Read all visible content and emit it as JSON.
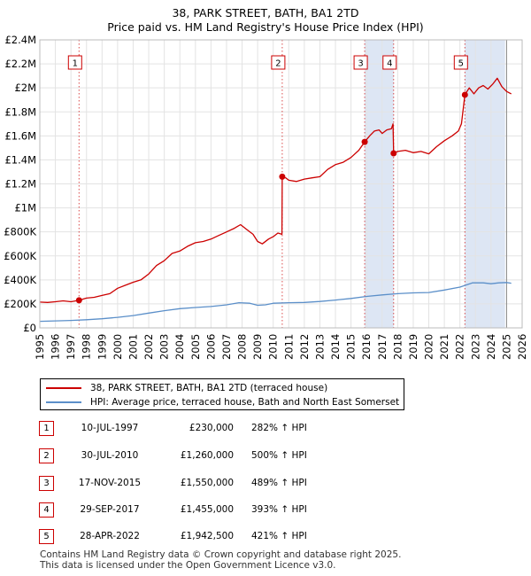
{
  "title_line1": "38, PARK STREET, BATH, BA1 2TD",
  "title_line2": "Price paid vs. HM Land Registry's House Price Index (HPI)",
  "colors": {
    "property": "#cc0000",
    "hpi": "#5b8fc9",
    "shade": "#dde6f4",
    "marker_border": "#cc0000"
  },
  "legend": {
    "property_label": "38, PARK STREET, BATH, BA1 2TD (terraced house)",
    "hpi_label": "HPI: Average price, terraced house, Bath and North East Somerset"
  },
  "transactions": [
    {
      "num": "1",
      "date": "10-JUL-1997",
      "price": "£230,000",
      "hpi": "282% ↑ HPI"
    },
    {
      "num": "2",
      "date": "30-JUL-2010",
      "price": "£1,260,000",
      "hpi": "500% ↑ HPI"
    },
    {
      "num": "3",
      "date": "17-NOV-2015",
      "price": "£1,550,000",
      "hpi": "489% ↑ HPI"
    },
    {
      "num": "4",
      "date": "29-SEP-2017",
      "price": "£1,455,000",
      "hpi": "393% ↑ HPI"
    },
    {
      "num": "5",
      "date": "28-APR-2022",
      "price": "£1,942,500",
      "hpi": "421% ↑ HPI"
    }
  ],
  "footer_line1": "Contains HM Land Registry data © Crown copyright and database right 2025.",
  "footer_line2": "This data is licensed under the Open Government Licence v3.0.",
  "chart_data": {
    "type": "line",
    "title": "38, PARK STREET, BATH, BA1 2TD",
    "subtitle": "Price paid vs. HM Land Registry's House Price Index (HPI)",
    "xlabel": "",
    "ylabel": "",
    "xlim": [
      1995,
      2026
    ],
    "ylim": [
      0,
      2400000
    ],
    "grid": true,
    "x_ticks": [
      1995,
      1996,
      1997,
      1998,
      1999,
      2000,
      2001,
      2002,
      2003,
      2004,
      2005,
      2006,
      2007,
      2008,
      2009,
      2010,
      2011,
      2012,
      2013,
      2014,
      2015,
      2016,
      2017,
      2018,
      2019,
      2020,
      2021,
      2022,
      2023,
      2024,
      2025,
      2026
    ],
    "y_ticks": [
      0,
      200000,
      400000,
      600000,
      800000,
      1000000,
      1200000,
      1400000,
      1600000,
      1800000,
      2000000,
      2200000,
      2400000
    ],
    "y_tick_labels": [
      "£0",
      "£200K",
      "£400K",
      "£600K",
      "£800K",
      "£1M",
      "£1.2M",
      "£1.4M",
      "£1.6M",
      "£1.8M",
      "£2M",
      "£2.2M",
      "£2.4M"
    ],
    "shaded_ranges": [
      [
        2015.88,
        2017.74
      ],
      [
        2022.32,
        2024.9
      ]
    ],
    "projection_line_x": 2025.0,
    "sales": [
      {
        "label": "1",
        "x": 1997.52,
        "y": 230000
      },
      {
        "label": "2",
        "x": 2010.58,
        "y": 1260000
      },
      {
        "label": "3",
        "x": 2015.88,
        "y": 1550000
      },
      {
        "label": "4",
        "x": 2017.74,
        "y": 1455000
      },
      {
        "label": "5",
        "x": 2022.32,
        "y": 1942500
      }
    ],
    "series": [
      {
        "name": "38, PARK STREET, BATH, BA1 2TD (terraced house)",
        "x": [
          1995.0,
          1995.5,
          1996.0,
          1996.5,
          1997.0,
          1997.52,
          1998.0,
          1998.5,
          1999.0,
          1999.5,
          2000.0,
          2000.5,
          2001.0,
          2001.5,
          2002.0,
          2002.5,
          2003.0,
          2003.5,
          2004.0,
          2004.5,
          2005.0,
          2005.5,
          2006.0,
          2006.5,
          2007.0,
          2007.5,
          2007.9,
          2008.3,
          2008.7,
          2009.0,
          2009.3,
          2009.7,
          2010.0,
          2010.3,
          2010.56,
          2010.58,
          2010.8,
          2011.0,
          2011.5,
          2012.0,
          2012.5,
          2013.0,
          2013.5,
          2014.0,
          2014.5,
          2015.0,
          2015.5,
          2015.88,
          2016.2,
          2016.5,
          2016.8,
          2017.0,
          2017.3,
          2017.6,
          2017.7,
          2017.74,
          2018.0,
          2018.5,
          2019.0,
          2019.5,
          2020.0,
          2020.5,
          2021.0,
          2021.5,
          2021.9,
          2022.1,
          2022.32,
          2022.6,
          2022.9,
          2023.2,
          2023.5,
          2023.8,
          2024.1,
          2024.4,
          2024.7,
          2025.0,
          2025.3
        ],
        "values": [
          215000,
          212000,
          218000,
          225000,
          218000,
          230000,
          248000,
          255000,
          270000,
          285000,
          330000,
          355000,
          380000,
          400000,
          450000,
          520000,
          560000,
          620000,
          640000,
          680000,
          710000,
          720000,
          740000,
          770000,
          800000,
          830000,
          860000,
          820000,
          780000,
          720000,
          700000,
          740000,
          760000,
          790000,
          780000,
          1260000,
          1250000,
          1230000,
          1220000,
          1240000,
          1250000,
          1260000,
          1320000,
          1360000,
          1380000,
          1420000,
          1480000,
          1550000,
          1600000,
          1640000,
          1650000,
          1620000,
          1650000,
          1660000,
          1700000,
          1455000,
          1470000,
          1480000,
          1460000,
          1470000,
          1450000,
          1510000,
          1560000,
          1600000,
          1640000,
          1700000,
          1942500,
          2000000,
          1950000,
          2000000,
          2020000,
          1990000,
          2030000,
          2080000,
          2010000,
          1970000,
          1950000
        ]
      },
      {
        "name": "HPI: Average price, terraced house, Bath and North East Somerset",
        "x": [
          1995.0,
          1996.0,
          1997.0,
          1998.0,
          1999.0,
          2000.0,
          2001.0,
          2002.0,
          2003.0,
          2004.0,
          2005.0,
          2006.0,
          2007.0,
          2007.8,
          2008.5,
          2009.0,
          2009.5,
          2010.0,
          2011.0,
          2012.0,
          2013.0,
          2014.0,
          2015.0,
          2016.0,
          2017.0,
          2018.0,
          2019.0,
          2020.0,
          2021.0,
          2022.0,
          2022.8,
          2023.5,
          2024.0,
          2024.5,
          2025.0,
          2025.3
        ],
        "values": [
          55000,
          58000,
          62000,
          68000,
          76000,
          88000,
          103000,
          123000,
          143000,
          160000,
          170000,
          178000,
          192000,
          210000,
          205000,
          188000,
          192000,
          205000,
          210000,
          212000,
          220000,
          232000,
          245000,
          262000,
          275000,
          285000,
          292000,
          295000,
          315000,
          340000,
          375000,
          375000,
          368000,
          375000,
          378000,
          372000
        ]
      }
    ]
  }
}
